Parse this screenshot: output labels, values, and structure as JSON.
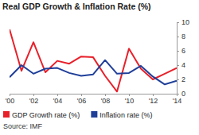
{
  "chart_data": {
    "type": "line",
    "title": "Real GDP Growth & Inflation Rate (%)",
    "source": "Source: IMF",
    "x": [
      2000,
      2001,
      2002,
      2003,
      2004,
      2005,
      2006,
      2007,
      2008,
      2009,
      2010,
      2011,
      2012,
      2013,
      2014
    ],
    "xlim": [
      2000,
      2014
    ],
    "xticks": [
      {
        "value": 2000,
        "label": "'00"
      },
      {
        "value": 2002,
        "label": "'02"
      },
      {
        "value": 2004,
        "label": "'04"
      },
      {
        "value": 2006,
        "label": "'06"
      },
      {
        "value": 2008,
        "label": "'08"
      },
      {
        "value": 2010,
        "label": "'10"
      },
      {
        "value": 2012,
        "label": "'12"
      },
      {
        "value": 2014,
        "label": "'14"
      }
    ],
    "ylim": [
      0,
      10
    ],
    "yticks": [
      0,
      2,
      4,
      6,
      8,
      10
    ],
    "grid": false,
    "legend": "bottom",
    "series": [
      {
        "name": "GDP Growth rate (%)",
        "color": "#e8202a",
        "values": [
          9.0,
          3.2,
          7.2,
          3.0,
          4.6,
          4.2,
          5.2,
          5.1,
          2.5,
          0.3,
          6.3,
          3.5,
          2.0,
          2.8,
          3.6
        ]
      },
      {
        "name": "Inflation rate (%)",
        "color": "#1f3f99",
        "values": [
          2.3,
          4.0,
          2.8,
          3.5,
          3.6,
          2.9,
          2.5,
          2.7,
          4.7,
          2.8,
          2.9,
          3.9,
          2.4,
          1.3,
          1.8
        ]
      }
    ]
  }
}
